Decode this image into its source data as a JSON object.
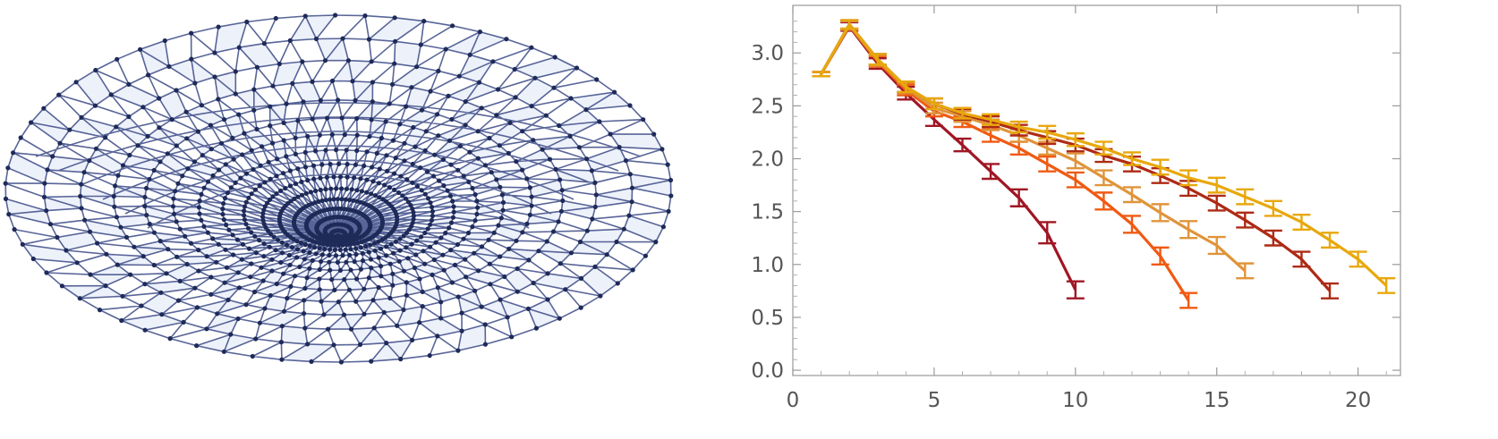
{
  "mesh": {
    "kind": "3d-surface-wireframe",
    "edge_color": "#3b4a86",
    "vertex_color": "#1e2a58",
    "face_color": "#dfe6f6",
    "description_icon": "mesh-network-icon"
  },
  "chart_data": {
    "type": "line",
    "title": "",
    "xlabel": "",
    "ylabel": "",
    "xlim": [
      0,
      21.5
    ],
    "ylim": [
      -0.05,
      3.45
    ],
    "xticks": [
      0,
      5,
      10,
      15,
      20
    ],
    "yticks": [
      0.0,
      0.5,
      1.0,
      1.5,
      2.0,
      2.5,
      3.0
    ],
    "ytick_labels": [
      "0.0",
      "0.5",
      "1.0",
      "1.5",
      "2.0",
      "2.5",
      "3.0"
    ],
    "xtick_labels": [
      "0",
      "5",
      "10",
      "15",
      "20"
    ],
    "grid": false,
    "legend": "none",
    "error_bars": true,
    "series": [
      {
        "color": "#a01624",
        "x": [
          1,
          2,
          3,
          4,
          5,
          6,
          7,
          8,
          9,
          10
        ],
        "y": [
          2.8,
          3.25,
          2.9,
          2.62,
          2.37,
          2.13,
          1.88,
          1.63,
          1.3,
          0.76
        ],
        "err": [
          0.02,
          0.04,
          0.05,
          0.06,
          0.06,
          0.06,
          0.07,
          0.08,
          0.1,
          0.08
        ]
      },
      {
        "color": "#f05a12",
        "x": [
          1,
          2,
          3,
          4,
          5,
          6,
          7,
          8,
          9,
          10,
          11,
          12,
          13,
          14
        ],
        "y": [
          2.8,
          3.26,
          2.92,
          2.65,
          2.45,
          2.35,
          2.22,
          2.1,
          1.95,
          1.8,
          1.6,
          1.38,
          1.08,
          0.66
        ],
        "err": [
          0.02,
          0.04,
          0.05,
          0.05,
          0.05,
          0.05,
          0.06,
          0.06,
          0.07,
          0.07,
          0.08,
          0.08,
          0.08,
          0.07
        ]
      },
      {
        "color": "#e0943a",
        "x": [
          1,
          2,
          3,
          4,
          5,
          6,
          7,
          8,
          9,
          10,
          11,
          12,
          13,
          14,
          15,
          16
        ],
        "y": [
          2.8,
          3.26,
          2.93,
          2.67,
          2.48,
          2.4,
          2.32,
          2.22,
          2.1,
          1.98,
          1.82,
          1.66,
          1.49,
          1.33,
          1.18,
          0.94
        ],
        "err": [
          0.02,
          0.04,
          0.05,
          0.05,
          0.05,
          0.05,
          0.05,
          0.06,
          0.06,
          0.07,
          0.07,
          0.07,
          0.08,
          0.08,
          0.08,
          0.07
        ]
      },
      {
        "color": "#ad2a14",
        "x": [
          1,
          2,
          3,
          4,
          5,
          6,
          7,
          8,
          9,
          10,
          11,
          12,
          13,
          14,
          15,
          16,
          17,
          18,
          19
        ],
        "y": [
          2.8,
          3.27,
          2.94,
          2.68,
          2.52,
          2.42,
          2.35,
          2.27,
          2.2,
          2.13,
          2.03,
          1.95,
          1.84,
          1.72,
          1.58,
          1.42,
          1.25,
          1.05,
          0.75
        ],
        "err": [
          0.02,
          0.04,
          0.05,
          0.05,
          0.05,
          0.05,
          0.05,
          0.05,
          0.06,
          0.06,
          0.06,
          0.07,
          0.07,
          0.07,
          0.07,
          0.07,
          0.07,
          0.07,
          0.07
        ]
      },
      {
        "color": "#e8a80c",
        "x": [
          1,
          2,
          3,
          4,
          5,
          6,
          7,
          8,
          9,
          10,
          11,
          12,
          13,
          14,
          15,
          16,
          17,
          18,
          19,
          20,
          21
        ],
        "y": [
          2.8,
          3.27,
          2.94,
          2.68,
          2.52,
          2.43,
          2.37,
          2.3,
          2.25,
          2.18,
          2.1,
          2.0,
          1.92,
          1.82,
          1.75,
          1.64,
          1.53,
          1.4,
          1.23,
          1.05,
          0.8
        ],
        "err": [
          0.02,
          0.04,
          0.05,
          0.05,
          0.05,
          0.05,
          0.05,
          0.05,
          0.06,
          0.06,
          0.06,
          0.06,
          0.07,
          0.07,
          0.07,
          0.07,
          0.07,
          0.07,
          0.07,
          0.07,
          0.07
        ]
      }
    ]
  }
}
